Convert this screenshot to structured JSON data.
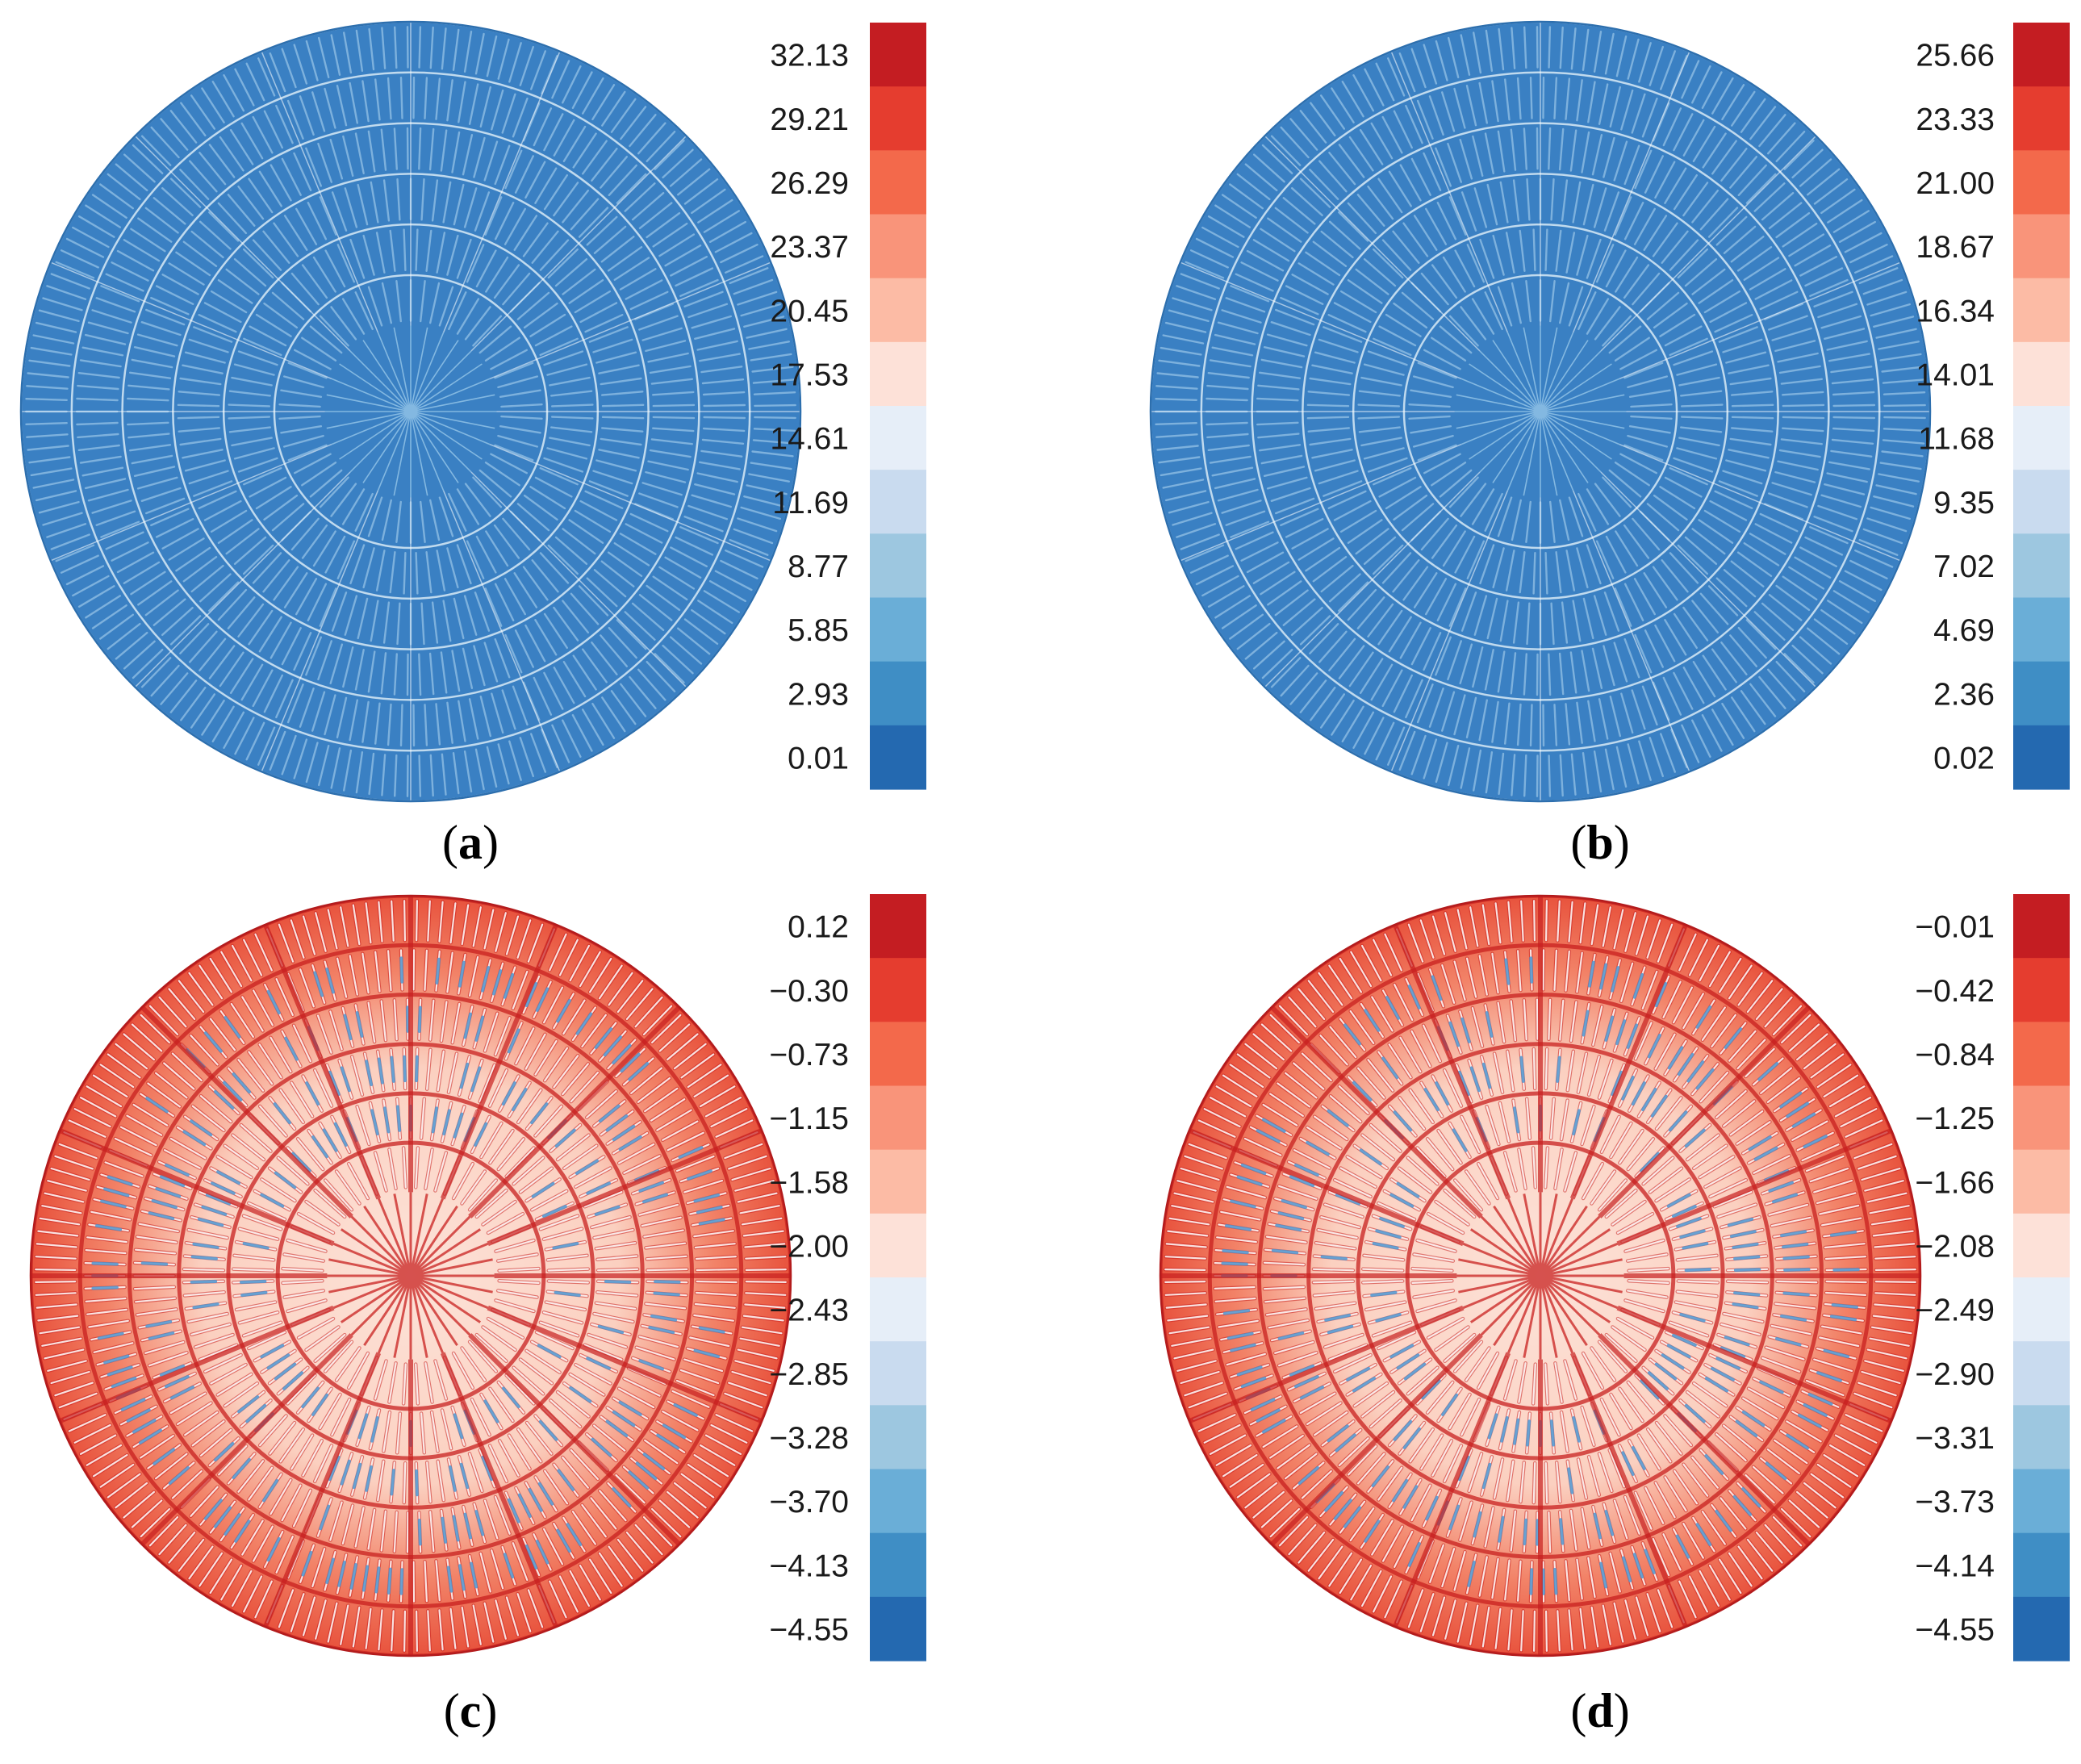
{
  "chart_data": [
    {
      "type": "heatmap",
      "panel": "a",
      "caption_letter": "a",
      "colorbar_ticks": [
        "32.13",
        "29.21",
        "26.29",
        "23.37",
        "20.45",
        "17.53",
        "14.61",
        "11.69",
        "8.77",
        "5.85",
        "2.93",
        "0.01"
      ],
      "colorbar_range": [
        0.01,
        32.13
      ],
      "field": "blue",
      "rings": 6
    },
    {
      "type": "heatmap",
      "panel": "b",
      "caption_letter": "b",
      "colorbar_ticks": [
        "25.66",
        "23.33",
        "21.00",
        "18.67",
        "16.34",
        "14.01",
        "11.68",
        "9.35",
        "7.02",
        "4.69",
        "2.36",
        "0.02"
      ],
      "colorbar_range": [
        0.02,
        25.66
      ],
      "field": "blue",
      "rings": 6
    },
    {
      "type": "heatmap",
      "panel": "c",
      "caption_letter": "c",
      "colorbar_ticks": [
        "0.12",
        "−0.30",
        "−0.73",
        "−1.15",
        "−1.58",
        "−2.00",
        "−2.43",
        "−2.85",
        "−3.28",
        "−3.70",
        "−4.13",
        "−4.55"
      ],
      "colorbar_range": [
        -4.55,
        0.12
      ],
      "field": "red",
      "rings": 6
    },
    {
      "type": "heatmap",
      "panel": "d",
      "caption_letter": "d",
      "colorbar_ticks": [
        "−0.01",
        "−0.42",
        "−0.84",
        "−1.25",
        "−1.66",
        "−2.08",
        "−2.49",
        "−2.90",
        "−3.31",
        "−3.73",
        "−4.14",
        "−4.55"
      ],
      "colorbar_range": [
        -4.55,
        -0.01
      ],
      "field": "red",
      "rings": 6
    }
  ],
  "colors": {
    "colormap": [
      "#c41d22",
      "#e53d2f",
      "#f3694b",
      "#f9947a",
      "#fcbba5",
      "#fde1d8",
      "#e6eef8",
      "#c9dbef",
      "#9dc7e0",
      "#6aaed7",
      "#3f8ec5",
      "#2469b0"
    ],
    "blue_base": "#3a80c3",
    "blue_line": "#8fbde3",
    "red_base": "#ee5a43",
    "red_dark": "#c8201f",
    "red_light": "#fbc2b0",
    "blue_spot": "#4f96d0"
  }
}
